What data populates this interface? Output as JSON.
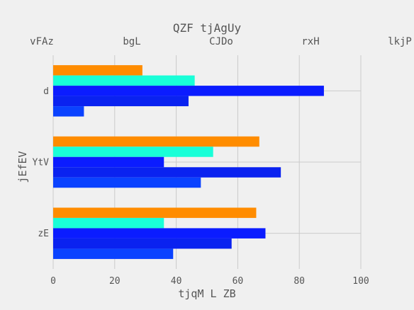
{
  "chart_data": {
    "type": "bar",
    "orientation": "horizontal",
    "title": "QZF tjAgUy",
    "top_labels": [
      "vFAz",
      "bgL",
      "CJDo",
      "rxH",
      "lkjP"
    ],
    "xlabel": "tjqM L ZB",
    "ylabel": "jEfEV",
    "xlim": [
      0,
      100
    ],
    "xticks": [
      0,
      20,
      40,
      60,
      80,
      100
    ],
    "categories": [
      "d",
      "YtV",
      "zE"
    ],
    "grid": true,
    "series": [
      {
        "color": "#ff8c00",
        "values": [
          29,
          67,
          66
        ]
      },
      {
        "color": "#19ffd8",
        "values": [
          46,
          52,
          36
        ]
      },
      {
        "color": "#0b1cff",
        "values": [
          88,
          36,
          69
        ]
      },
      {
        "color": "#0a22f0",
        "values": [
          44,
          74,
          58
        ]
      },
      {
        "color": "#0a42ff",
        "values": [
          10,
          48,
          39
        ]
      }
    ]
  }
}
